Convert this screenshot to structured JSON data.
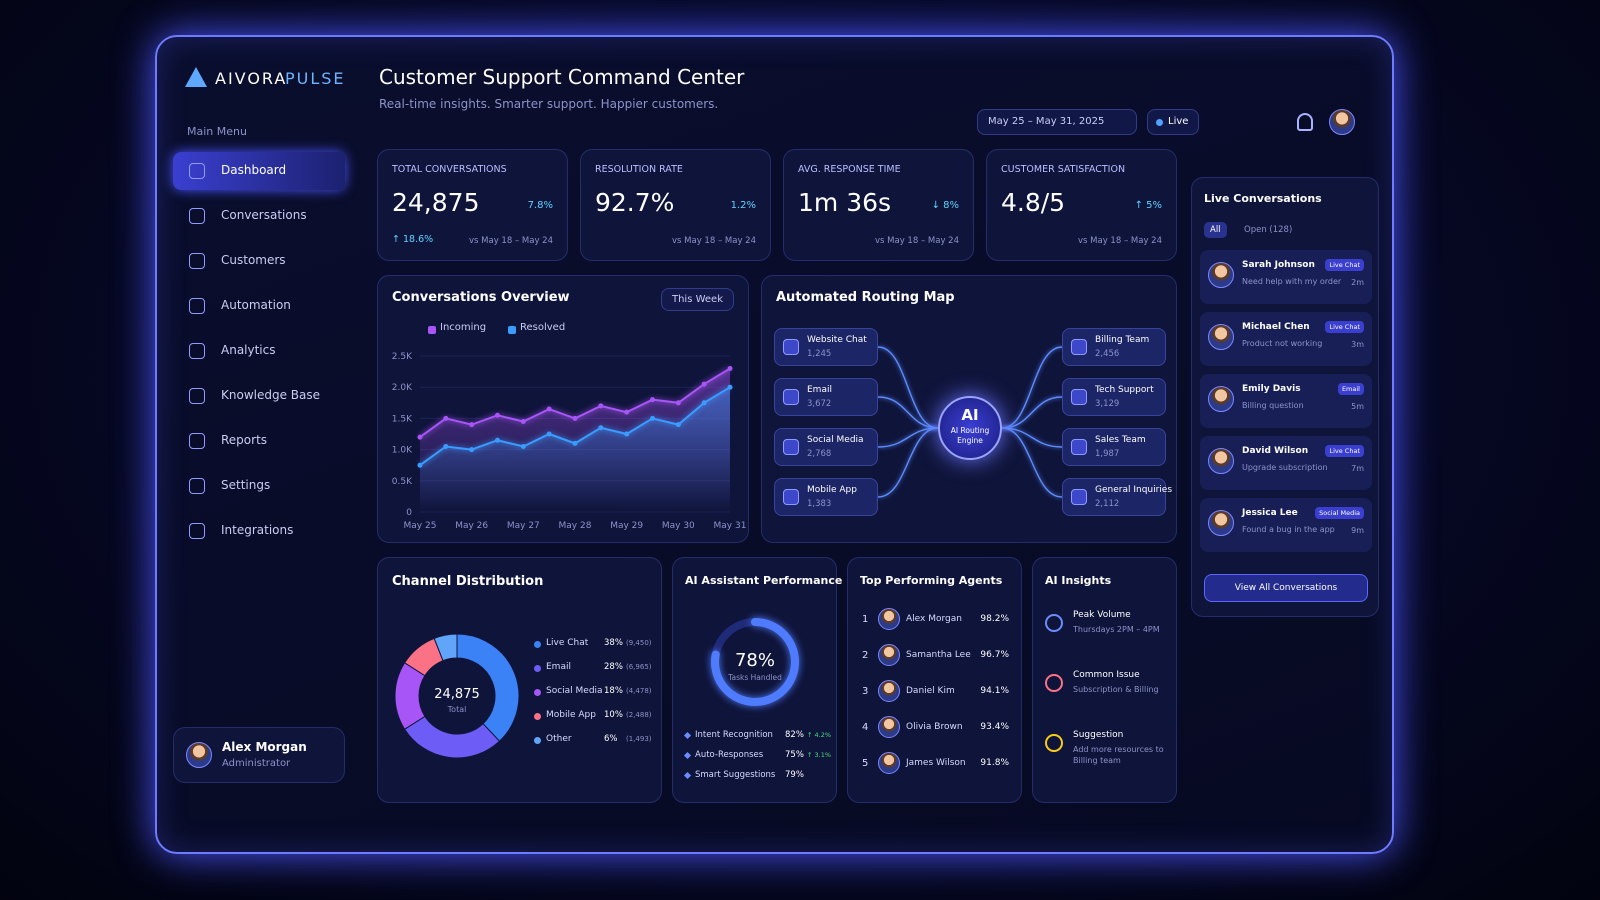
{
  "brand": {
    "name": "AIVORA",
    "suffix": "PULSE"
  },
  "sidebar": {
    "menu_label": "Main Menu",
    "items": [
      "Dashboard",
      "Conversations",
      "Customers",
      "Automation",
      "Analytics",
      "Knowledge Base",
      "Reports",
      "Settings",
      "Integrations"
    ]
  },
  "user": {
    "name": "Alex Morgan",
    "role": "Administrator"
  },
  "header": {
    "title": "Customer Support Command Center",
    "subtitle": "Real-time insights. Smarter support. Happier customers.",
    "date_range": "May 25 – May 31, 2025",
    "live": "Live"
  },
  "kpis": [
    {
      "label": "TOTAL CONVERSATIONS",
      "value": "24,875",
      "change": "7.8%",
      "trend": "↑ 18.6%",
      "compare": "vs May 18 – May 24"
    },
    {
      "label": "RESOLUTION RATE",
      "value": "92.7%",
      "change": "1.2%",
      "compare": "vs May 18 – May 24"
    },
    {
      "label": "AVG. RESPONSE TIME",
      "value": "1m 36s",
      "change": "↓ 8%",
      "compare": "vs May 18 – May 24"
    },
    {
      "label": "CUSTOMER SATISFACTION",
      "value": "4.8/5",
      "change": "↑ 5%",
      "compare": "vs May 18 – May 24"
    }
  ],
  "conversations_overview": {
    "type": "line",
    "title": "Conversations Overview",
    "period": "This Week",
    "categories": [
      "May 25",
      null,
      "May 26",
      null,
      "May 27",
      null,
      "May 28",
      null,
      "May 29",
      null,
      "May 30",
      null,
      "May 31"
    ],
    "series": [
      {
        "name": "Incoming",
        "color": "#a855f7",
        "values": [
          1200,
          1500,
          1400,
          1550,
          1450,
          1650,
          1500,
          1700,
          1600,
          1800,
          1750,
          2050,
          2300
        ]
      },
      {
        "name": "Resolved",
        "color": "#3b9cff",
        "values": [
          750,
          1050,
          1000,
          1150,
          1050,
          1250,
          1100,
          1350,
          1250,
          1500,
          1400,
          1750,
          2000
        ]
      }
    ],
    "ylim": [
      0,
      2500
    ],
    "yticks": [
      0,
      {
        "value": 500,
        "label": "0.5K"
      },
      {
        "value": 1000,
        "label": "1.0K"
      },
      {
        "value": 1500,
        "label": "1.5K"
      },
      {
        "value": 2000,
        "label": "2.0K"
      },
      {
        "value": 2500,
        "label": "2.5K"
      }
    ]
  },
  "routing_map": {
    "title": "Automated Routing Map",
    "engine": {
      "badge": "AI",
      "label": "AI Routing Engine"
    },
    "sources": [
      {
        "name": "Website Chat",
        "count": "1,245"
      },
      {
        "name": "Email",
        "count": "3,672"
      },
      {
        "name": "Social Media",
        "count": "2,768"
      },
      {
        "name": "Mobile App",
        "count": "1,383"
      }
    ],
    "destinations": [
      {
        "name": "Billing Team",
        "count": "2,456"
      },
      {
        "name": "Tech Support",
        "count": "3,129"
      },
      {
        "name": "Sales Team",
        "count": "1,987"
      },
      {
        "name": "General Inquiries",
        "count": "2,112"
      }
    ]
  },
  "channel_distribution": {
    "type": "pie",
    "title": "Channel Distribution",
    "total": "24,875",
    "total_label": "Total",
    "categories": [
      "Live Chat",
      "Email",
      "Social Media",
      "Mobile App",
      "Other"
    ],
    "values": [
      38,
      28,
      18,
      10,
      6
    ],
    "value_labels": [
      "38%",
      "28%",
      "18%",
      "10%",
      "6%"
    ],
    "counts": [
      "(9,450)",
      "(6,965)",
      "(4,478)",
      "(2,488)",
      "(1,493)"
    ],
    "colors": [
      "#3b82f6",
      "#6d5cf6",
      "#a855f7",
      "#fb7185",
      "#60a5fa"
    ]
  },
  "ai_performance": {
    "type": "gauge",
    "title": "AI Assistant Performance",
    "value": 78,
    "value_label": "78%",
    "caption": "Tasks Handled",
    "color": "#4f7cff",
    "metrics": [
      {
        "name": "Intent Recognition",
        "value": "82%",
        "change": "↑ 4.2%"
      },
      {
        "name": "Auto-Responses",
        "value": "75%",
        "change": "↑ 3.1%"
      },
      {
        "name": "Smart Suggestions",
        "value": "79%"
      }
    ]
  },
  "top_agents": {
    "title": "Top Performing Agents",
    "agents": [
      {
        "rank": "1",
        "name": "Alex Morgan",
        "score": "98.2%"
      },
      {
        "rank": "2",
        "name": "Samantha Lee",
        "score": "96.7%"
      },
      {
        "rank": "3",
        "name": "Daniel Kim",
        "score": "94.1%"
      },
      {
        "rank": "4",
        "name": "Olivia Brown",
        "score": "93.4%"
      },
      {
        "rank": "5",
        "name": "James Wilson",
        "score": "91.8%"
      }
    ]
  },
  "ai_insights": {
    "title": "AI Insights",
    "items": [
      {
        "title": "Peak Volume",
        "detail": "Thursdays 2PM – 4PM"
      },
      {
        "title": "Common Issue",
        "detail": "Subscription & Billing"
      },
      {
        "title": "Suggestion",
        "detail": "Add more resources to Billing team"
      }
    ]
  },
  "live_conversations": {
    "title": "Live Conversations",
    "tabs": [
      "All",
      "Open (128)"
    ],
    "items": [
      {
        "name": "Sarah Johnson",
        "message": "Need help with my order",
        "channel": "Live Chat",
        "time": "2m"
      },
      {
        "name": "Michael Chen",
        "message": "Product not working",
        "channel": "Live Chat",
        "time": "3m"
      },
      {
        "name": "Emily Davis",
        "message": "Billing question",
        "channel": "Email",
        "time": "5m"
      },
      {
        "name": "David Wilson",
        "message": "Upgrade subscription",
        "channel": "Live Chat",
        "time": "7m"
      },
      {
        "name": "Jessica Lee",
        "message": "Found a bug in the app",
        "channel": "Social Media",
        "time": "9m"
      }
    ],
    "button": "View All Conversations"
  }
}
